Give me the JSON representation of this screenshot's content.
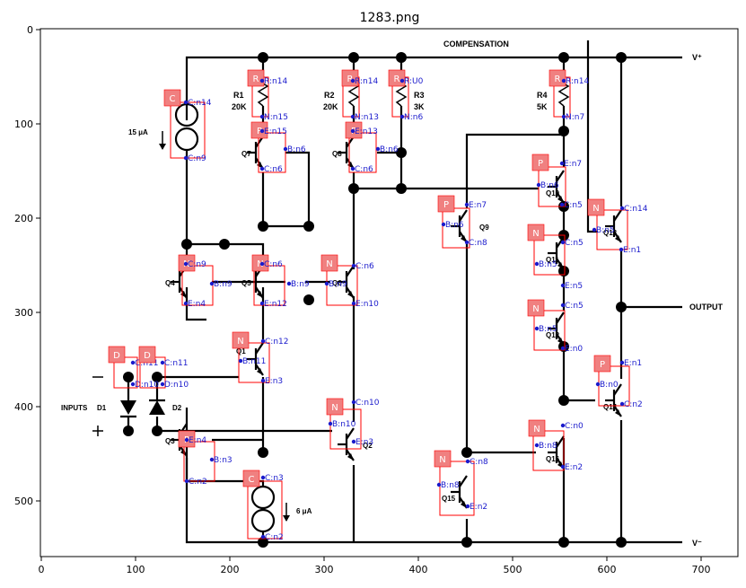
{
  "figure": {
    "title": "1283.png",
    "x_ticks": [
      "0",
      "100",
      "200",
      "300",
      "400",
      "500",
      "600",
      "700"
    ],
    "y_ticks": [
      "0",
      "100",
      "200",
      "300",
      "400",
      "500"
    ]
  },
  "schematic": {
    "compensation": "COMPENSATION",
    "vplus": "V⁺",
    "vminus": "V⁻",
    "output": "OUTPUT",
    "inputs": "INPUTS",
    "d1": "D1",
    "d2": "D2",
    "i15": "15 μA",
    "i6": "6 μA",
    "r1": [
      "R1",
      "20K"
    ],
    "r2": [
      "R2",
      "20K"
    ],
    "r3": [
      "R3",
      "3K"
    ],
    "r4": [
      "R4",
      "5K"
    ],
    "transistors": [
      "Q1",
      "Q2",
      "Q3",
      "Q4",
      "Q5",
      "Q6",
      "Q7",
      "Q8",
      "Q9",
      "Q10",
      "Q11",
      "Q12",
      "Q13",
      "Q14",
      "Q15",
      "Q16"
    ]
  },
  "annotations": {
    "boxes": [
      {
        "tag": "C",
        "labels": [
          "C:n14",
          "C:n9"
        ]
      },
      {
        "tag": "R",
        "labels": [
          "R:n14",
          "N:n15"
        ]
      },
      {
        "tag": "R",
        "labels": [
          "R:n14",
          "N:n13"
        ]
      },
      {
        "tag": "R",
        "labels": [
          "R:U0",
          "N:n6"
        ]
      },
      {
        "tag": "R",
        "labels": [
          "R:n14",
          "N:n7"
        ]
      },
      {
        "tag": "P",
        "labels": [
          "E:n15",
          "B:n6",
          "C:n6"
        ]
      },
      {
        "tag": "P",
        "labels": [
          "E:n13",
          "B:n6",
          "C:n6"
        ]
      },
      {
        "tag": "P",
        "labels": [
          "E:n7",
          "B:n6",
          "C:n5"
        ]
      },
      {
        "tag": "P",
        "labels": [
          "E:n7",
          "B:n6",
          "C:n8"
        ]
      },
      {
        "tag": "N",
        "labels": [
          "C:n14",
          "B:n5",
          "E:n1"
        ]
      },
      {
        "tag": "N",
        "labels": [
          "C:n5",
          "B:n5",
          "E:n5"
        ]
      },
      {
        "tag": "N",
        "labels": [
          "C:n9",
          "B:n9",
          "E:n4"
        ]
      },
      {
        "tag": "N",
        "labels": [
          "C:n6",
          "B:n9",
          "E:n12"
        ]
      },
      {
        "tag": "N",
        "labels": [
          "C:n6",
          "B:n9",
          "E:n10"
        ]
      },
      {
        "tag": "N",
        "labels": [
          "C:n5",
          "B:n5",
          "E:n0"
        ]
      },
      {
        "tag": "N",
        "labels": [
          "C:n12",
          "B:n11",
          "E:n3"
        ]
      },
      {
        "tag": "D",
        "labels": [
          "C:n11",
          "D:n10"
        ]
      },
      {
        "tag": "D",
        "labels": [
          "C:n11",
          "D:n10"
        ]
      },
      {
        "tag": "P",
        "labels": [
          "E:n1",
          "B:n0",
          "C:n2"
        ]
      },
      {
        "tag": "N",
        "labels": [
          "C:n10",
          "B:n10",
          "E:n3"
        ]
      },
      {
        "tag": "N",
        "labels": [
          "C:n0",
          "B:n8",
          "E:n2"
        ]
      },
      {
        "tag": "P",
        "labels": [
          "E:n4",
          "B:n3",
          "C:n2"
        ]
      },
      {
        "tag": "C",
        "labels": [
          "C:n3",
          "C:n2"
        ]
      },
      {
        "tag": "N",
        "labels": [
          "C:n8",
          "B:n8",
          "E:n2"
        ]
      }
    ]
  },
  "colors": {
    "box": "#ff0000",
    "tag_fill": "#f08080",
    "label": "#1a1acc",
    "wire": "#000000"
  }
}
